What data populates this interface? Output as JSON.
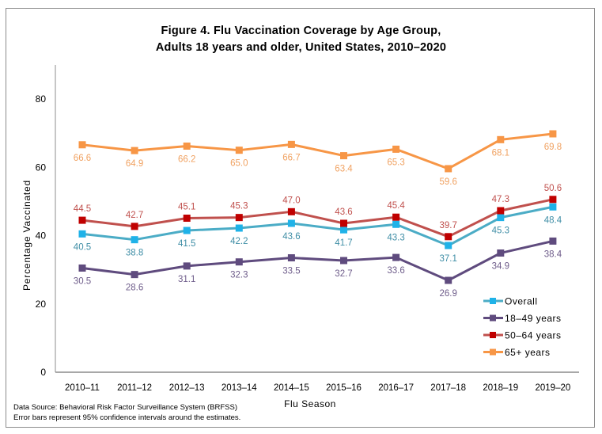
{
  "chart_data": {
    "type": "line",
    "title": "Figure 4. Flu Vaccination Coverage by Age Group,",
    "subtitle": "Adults 18 years and older, United States, 2010–2020",
    "xlabel": "Flu Season",
    "ylabel": "Percentage Vaccinated",
    "ylim": [
      0,
      80
    ],
    "yticks": [
      "0",
      "20",
      "40",
      "60",
      "80"
    ],
    "grid": false,
    "legend_position": "bottom-right",
    "categories": [
      "2010–11",
      "2011–12",
      "2012–13",
      "2013–14",
      "2014–15",
      "2015–16",
      "2016–17",
      "2017–18",
      "2018–19",
      "2019–20"
    ],
    "series": [
      {
        "name": "Overall",
        "color": "#4bacc6",
        "marker_color": "#1fb2e8",
        "label_color": "#3f8ea6",
        "label_pos": "below",
        "values": [
          40.5,
          38.8,
          41.5,
          42.2,
          43.6,
          41.7,
          43.3,
          37.1,
          45.3,
          48.4
        ]
      },
      {
        "name": "18–49 years",
        "color": "#5f4b7e",
        "marker_color": "#5f4b7e",
        "label_color": "#6e5c8a",
        "label_pos": "below",
        "values": [
          30.5,
          28.6,
          31.1,
          32.3,
          33.5,
          32.7,
          33.6,
          26.9,
          34.9,
          38.4
        ]
      },
      {
        "name": "50–64 years",
        "color": "#c0504d",
        "marker_color": "#c00000",
        "label_color": "#c0504d",
        "label_pos": "above",
        "values": [
          44.5,
          42.7,
          45.1,
          45.3,
          47.0,
          43.6,
          45.4,
          39.7,
          47.3,
          50.6
        ]
      },
      {
        "name": "65+ years",
        "color": "#f79646",
        "marker_color": "#f79646",
        "label_color": "#f0a160",
        "label_pos": "below",
        "values": [
          66.6,
          64.9,
          66.2,
          65.0,
          66.7,
          63.4,
          65.3,
          59.6,
          68.1,
          69.8
        ]
      }
    ]
  },
  "footnotes": {
    "source": "Data Source: Behavioral Risk Factor Surveillance System (BRFSS)",
    "error_bars": "Error bars represent 95% confidence intervals around the estimates."
  }
}
